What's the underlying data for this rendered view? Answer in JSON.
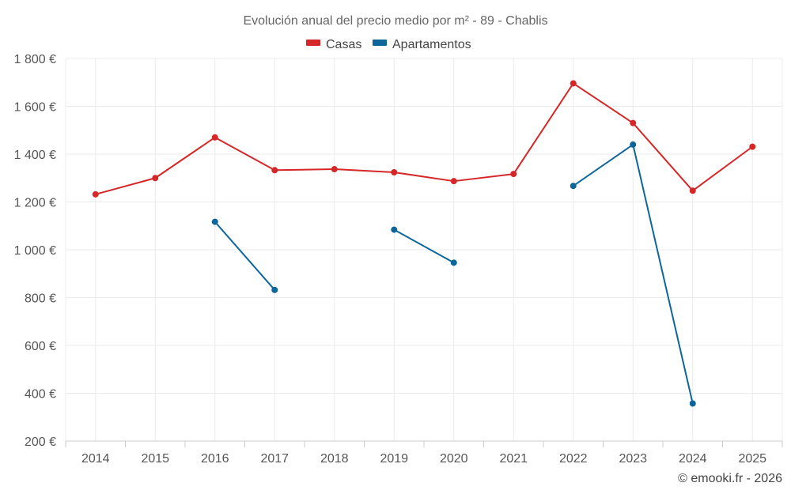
{
  "chart_data": {
    "type": "line",
    "title": "Evolución anual del precio medio por m² - 89 - Chablis",
    "categories": [
      "2014",
      "2015",
      "2016",
      "2017",
      "2018",
      "2019",
      "2020",
      "2021",
      "2022",
      "2023",
      "2024",
      "2025"
    ],
    "series": [
      {
        "name": "Casas",
        "color": "#d62728",
        "values": [
          1232,
          1300,
          1470,
          1333,
          1337,
          1324,
          1287,
          1317,
          1696,
          1530,
          1247,
          1431
        ]
      },
      {
        "name": "Apartamentos",
        "color": "#0d6699",
        "values": [
          null,
          null,
          1117,
          832,
          null,
          1084,
          946,
          null,
          1267,
          1440,
          357,
          null
        ]
      }
    ],
    "ylim": [
      200,
      1800
    ],
    "yticks": [
      200,
      400,
      600,
      800,
      1000,
      1200,
      1400,
      1600,
      1800
    ],
    "ytick_labels": [
      "200 €",
      "400 €",
      "600 €",
      "800 €",
      "1 000 €",
      "1 200 €",
      "1 400 €",
      "1 600 €",
      "1 800 €"
    ],
    "grid": true,
    "legend_position": "top-center",
    "xlabel": "",
    "ylabel": ""
  },
  "credit": "© emooki.fr - 2026"
}
